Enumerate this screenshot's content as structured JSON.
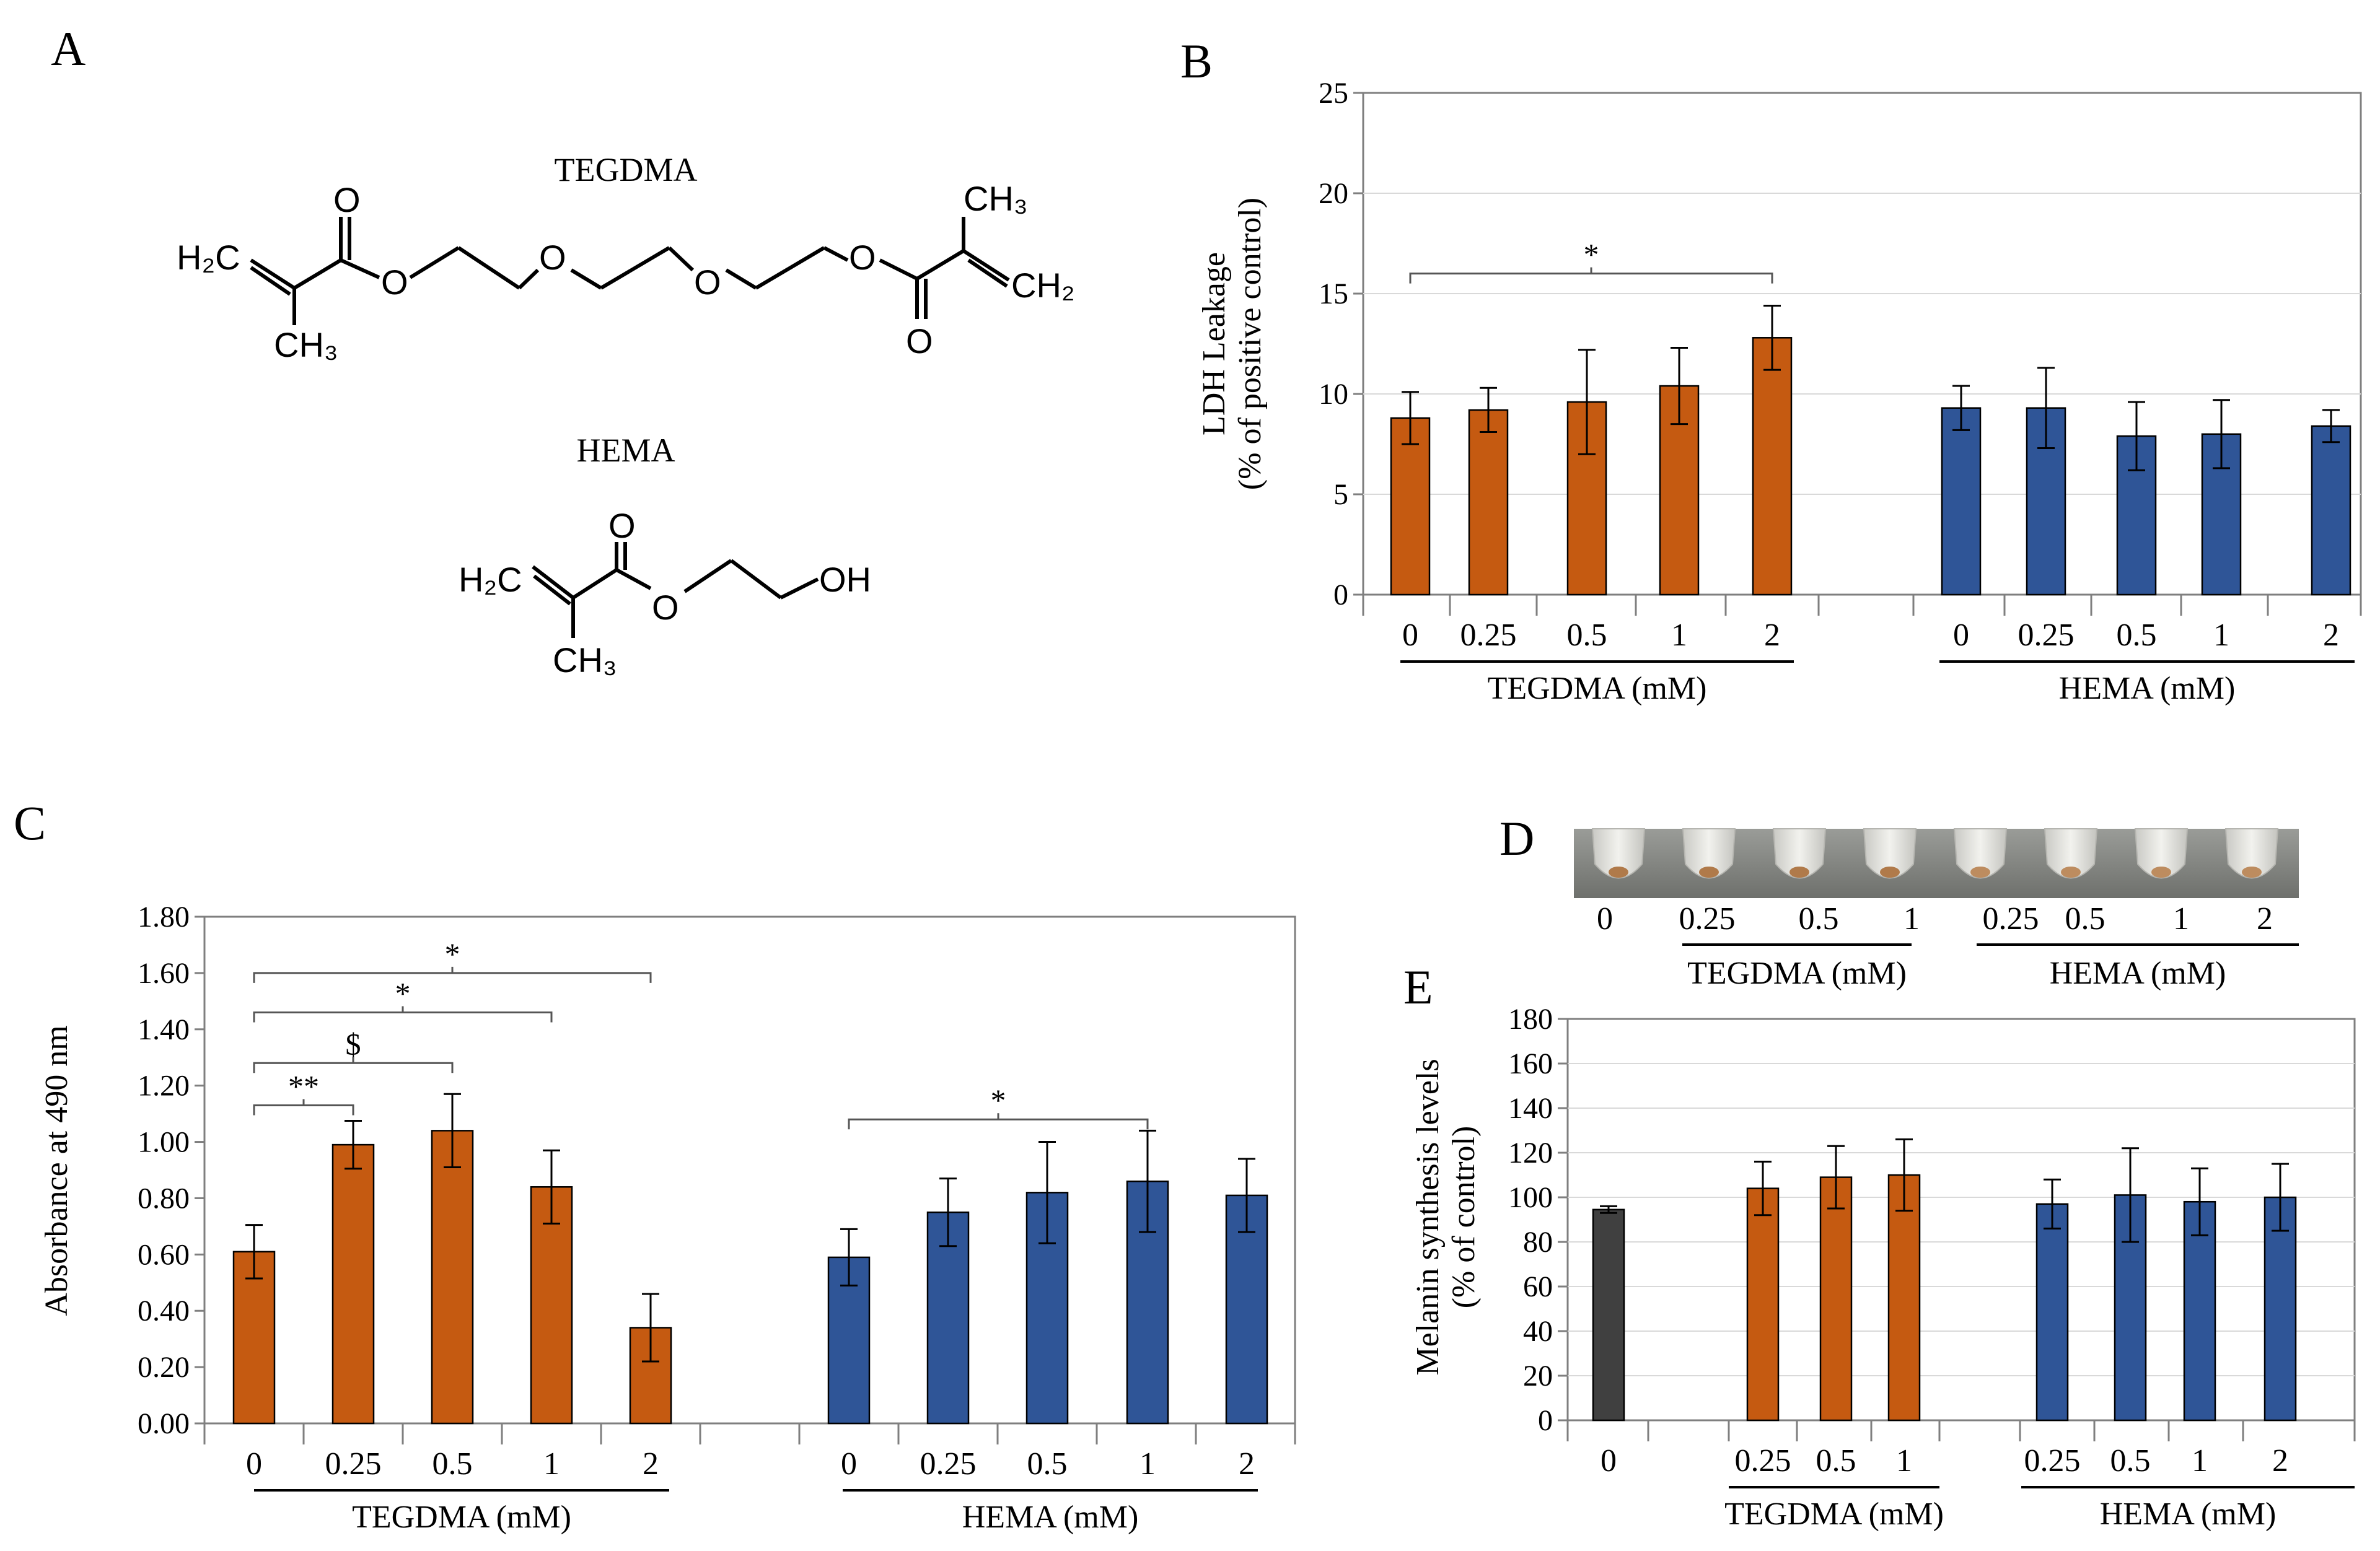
{
  "colors": {
    "tegdma": "#C55A11",
    "hema": "#2F5597",
    "control": "#404040",
    "axis": "#7F7F7F",
    "grid": "#D9D9D9",
    "text": "#000000"
  },
  "panel_a": {
    "label": "A",
    "tegdma_title": "TEGDMA",
    "hema_title": "HEMA",
    "atoms": {
      "o": "O",
      "h2c": "H₂C",
      "ch3": "CH₃",
      "ch2": "CH₂",
      "oh": "OH"
    }
  },
  "panel_d": {
    "label": "D",
    "tube_count": 8,
    "labels": [
      "0",
      "0.25",
      "0.5",
      "1",
      "0.25",
      "0.5",
      "1",
      "2"
    ],
    "group_tegdma": "TEGDMA (mM)",
    "group_hema": "HEMA (mM)"
  },
  "chart_data": [
    {
      "panel": "B",
      "type": "bar",
      "ylabel_line1": "LDH Leakage",
      "ylabel_line2": "(% of positive control)",
      "ylim": [
        0,
        25
      ],
      "yticks": [
        "0",
        "5",
        "10",
        "15",
        "20",
        "25"
      ],
      "grid": true,
      "groups": [
        {
          "name": "TEGDMA (mM)",
          "color_key": "tegdma",
          "categories": [
            "0",
            "0.25",
            "0.5",
            "1",
            "2"
          ],
          "values": [
            8.8,
            9.2,
            9.6,
            10.4,
            12.8
          ],
          "errors": [
            1.3,
            1.1,
            2.6,
            1.9,
            1.6
          ]
        },
        {
          "name": "HEMA (mM)",
          "color_key": "hema",
          "categories": [
            "0",
            "0.25",
            "0.5",
            "1",
            "2"
          ],
          "values": [
            9.3,
            9.3,
            7.9,
            8.0,
            8.4
          ],
          "errors": [
            1.1,
            2.0,
            1.7,
            1.7,
            0.8
          ]
        }
      ],
      "significance": [
        {
          "from": [
            0,
            0
          ],
          "to": [
            0,
            4
          ],
          "y": 16.0,
          "label": "*"
        }
      ]
    },
    {
      "panel": "C",
      "type": "bar",
      "ylabel": "Absorbance  at 490 nm",
      "ylim": [
        0,
        1.8
      ],
      "yticks": [
        "0.00",
        "0.20",
        "0.40",
        "0.60",
        "0.80",
        "1.00",
        "1.20",
        "1.40",
        "1.60",
        "1.80"
      ],
      "grid": false,
      "groups": [
        {
          "name": "TEGDMA (mM)",
          "color_key": "tegdma",
          "categories": [
            "0",
            "0.25",
            "0.5",
            "1",
            "2"
          ],
          "values": [
            0.61,
            0.99,
            1.04,
            0.84,
            0.34
          ],
          "errors": [
            0.095,
            0.085,
            0.13,
            0.13,
            0.12
          ]
        },
        {
          "name": "HEMA (mM)",
          "color_key": "hema",
          "categories": [
            "0",
            "0.25",
            "0.5",
            "1",
            "2"
          ],
          "values": [
            0.59,
            0.75,
            0.82,
            0.86,
            0.81
          ],
          "errors": [
            0.1,
            0.12,
            0.18,
            0.18,
            0.13
          ]
        }
      ],
      "significance": [
        {
          "from": [
            0,
            0
          ],
          "to": [
            0,
            1
          ],
          "y": 1.13,
          "label": "**"
        },
        {
          "from": [
            0,
            0
          ],
          "to": [
            0,
            2
          ],
          "y": 1.28,
          "label": "$"
        },
        {
          "from": [
            0,
            0
          ],
          "to": [
            0,
            3
          ],
          "y": 1.46,
          "label": "*"
        },
        {
          "from": [
            0,
            0
          ],
          "to": [
            0,
            4
          ],
          "y": 1.6,
          "label": "*"
        },
        {
          "from": [
            1,
            0
          ],
          "to": [
            1,
            3
          ],
          "y": 1.08,
          "label": "*"
        }
      ]
    },
    {
      "panel": "E",
      "type": "bar",
      "ylabel_line1": "Melanin synthesis levels",
      "ylabel_line2": "(% of control)",
      "ylim": [
        0,
        180
      ],
      "yticks": [
        "0",
        "20",
        "40",
        "60",
        "80",
        "100",
        "120",
        "140",
        "160",
        "180"
      ],
      "grid": true,
      "groups": [
        {
          "name": "",
          "color_key": "control",
          "categories": [
            "0"
          ],
          "values": [
            94.5
          ],
          "errors": [
            1.5
          ]
        },
        {
          "name": "TEGDMA (mM)",
          "color_key": "tegdma",
          "categories": [
            "0.25",
            "0.5",
            "1"
          ],
          "values": [
            104,
            109,
            110
          ],
          "errors": [
            12,
            14,
            16
          ]
        },
        {
          "name": "HEMA (mM)",
          "color_key": "hema",
          "categories": [
            "0.25",
            "0.5",
            "1",
            "2"
          ],
          "values": [
            97,
            101,
            98,
            100
          ],
          "errors": [
            11,
            21,
            15,
            15
          ]
        }
      ],
      "significance": []
    }
  ]
}
